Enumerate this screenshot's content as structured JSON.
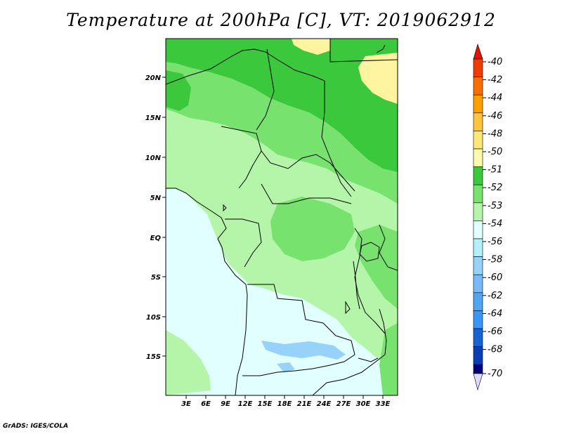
{
  "title": "Temperature at 200hPa [C], VT: 2019062912",
  "footer": "GrADS: IGES/COLA",
  "map": {
    "variable": "Temperature",
    "level": "200hPa",
    "units": "C",
    "valid_time": "2019062912",
    "lat_labels": [
      "20N",
      "15N",
      "10N",
      "5N",
      "EQ",
      "5S",
      "10S",
      "15S"
    ],
    "lon_labels": [
      "3E",
      "6E",
      "9E",
      "12E",
      "15E",
      "18E",
      "21E",
      "24E",
      "27E",
      "30E",
      "33E"
    ],
    "colors": {
      "c54": "#e0fffe",
      "c53": "#b4f5aa",
      "c52": "#78e26e",
      "c51": "#3cc83c",
      "c50": "#fff5a0",
      "c56": "#96d2fa",
      "border": "#000000"
    }
  },
  "colorbar": {
    "labels": [
      "-40",
      "-42",
      "-44",
      "-46",
      "-48",
      "-50",
      "-51",
      "-52",
      "-53",
      "-54",
      "-56",
      "-58",
      "-60",
      "-62",
      "-64",
      "-66",
      "-68",
      "-70"
    ],
    "colors": [
      "#e11400",
      "#f03c00",
      "#fa6e00",
      "#ffa000",
      "#ffc33c",
      "#ffe678",
      "#fffaaa",
      "#3cc83c",
      "#78e26e",
      "#b4f5aa",
      "#e0fffe",
      "#b4f0fa",
      "#96d2fa",
      "#78b9fa",
      "#50a5f5",
      "#3c96f5",
      "#1464d2",
      "#0a3cb4",
      "#000078",
      "#dcdcff"
    ]
  }
}
